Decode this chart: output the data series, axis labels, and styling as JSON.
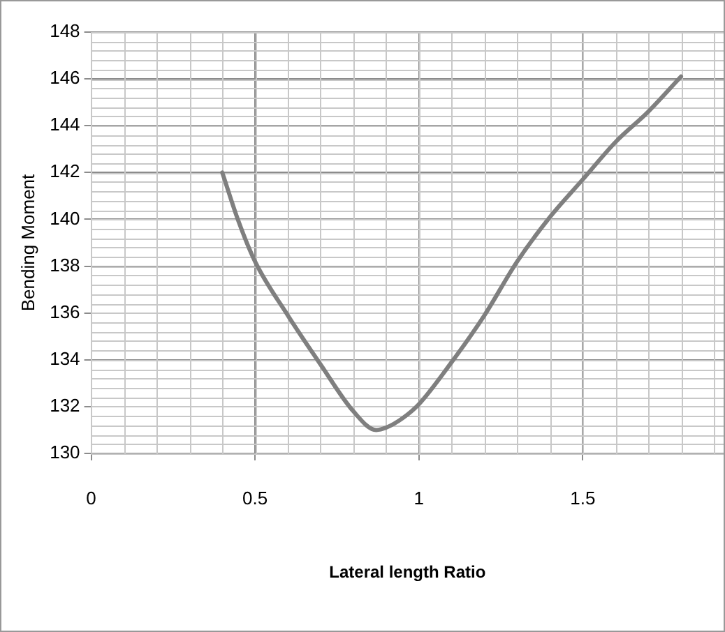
{
  "chart_data": {
    "type": "line",
    "xlabel": "Lateral length Ratio",
    "ylabel": "Bending Moment",
    "x": [
      0.4,
      0.45,
      0.5,
      0.6,
      0.7,
      0.8,
      0.87,
      0.9,
      0.95,
      1.0,
      1.1,
      1.2,
      1.3,
      1.4,
      1.5,
      1.6,
      1.7,
      1.8
    ],
    "series": [
      {
        "color": "#7f7f7f",
        "values": [
          142.0,
          139.9,
          138.2,
          135.9,
          133.8,
          131.8,
          131.0,
          131.1,
          131.5,
          132.1,
          133.9,
          135.9,
          138.2,
          140.1,
          141.7,
          143.3,
          144.6,
          146.1
        ]
      }
    ],
    "xlim": [
      0,
      1.93
    ],
    "xticks": [
      0,
      0.5,
      1,
      1.5
    ],
    "ylim": [
      130,
      148
    ],
    "yticks": [
      130,
      132,
      134,
      136,
      138,
      140,
      142,
      144,
      146,
      148
    ],
    "grid": true,
    "legend": false,
    "marker": "none",
    "line_style": "solid"
  }
}
